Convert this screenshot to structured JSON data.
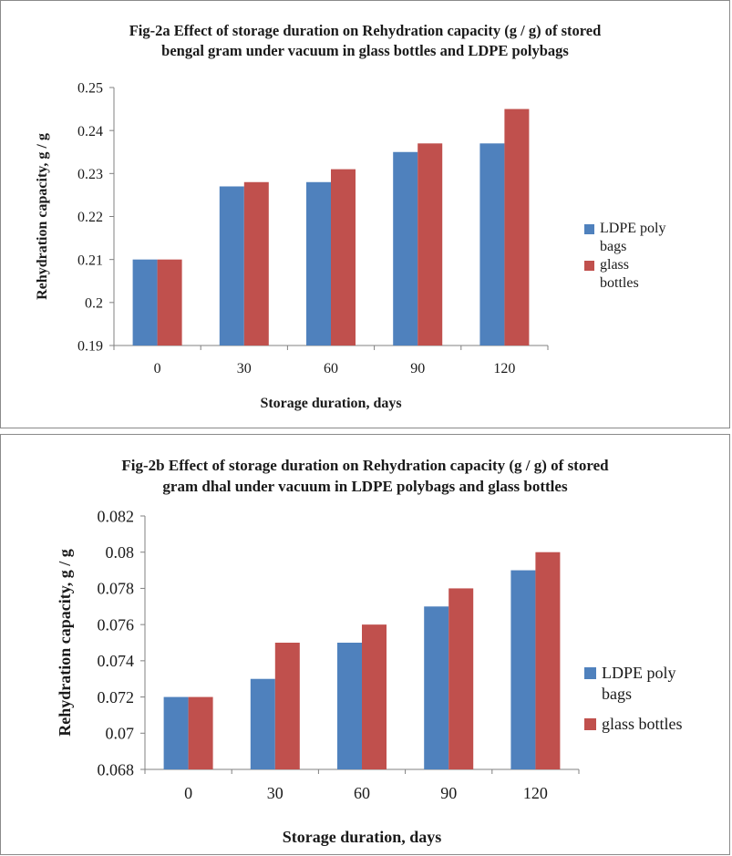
{
  "chart_data": [
    {
      "type": "bar",
      "title": [
        "Fig-2a Effect of storage duration on Rehydration capacity (g / g) of stored",
        "bengal gram under vacuum in glass bottles and LDPE polybags"
      ],
      "xlabel": "Storage duration, days",
      "ylabel": "Rehydration capacity, g / g",
      "categories": [
        "0",
        "30",
        "60",
        "90",
        "120"
      ],
      "ylim": [
        0.19,
        0.25
      ],
      "yticks": [
        "0.25",
        "0.24",
        "0.23",
        "0.22",
        "0.21",
        "0.2",
        "0.19"
      ],
      "grid": false,
      "legend_position": "right",
      "series": [
        {
          "name": [
            "LDPE poly",
            "bags"
          ],
          "color": "#4f81bd",
          "values": [
            0.21,
            0.227,
            0.228,
            0.235,
            0.237
          ]
        },
        {
          "name": [
            "glass",
            "bottles"
          ],
          "color": "#c0504d",
          "values": [
            0.21,
            0.228,
            0.231,
            0.237,
            0.245
          ]
        }
      ]
    },
    {
      "type": "bar",
      "title": [
        "Fig-2b Effect of storage duration on Rehydration capacity (g / g) of stored",
        "gram dhal under vacuum in LDPE polybags and glass bottles"
      ],
      "xlabel": "Storage duration, days",
      "ylabel": "Rehydration capacity, g / g",
      "categories": [
        "0",
        "30",
        "60",
        "90",
        "120"
      ],
      "ylim": [
        0.068,
        0.082
      ],
      "yticks": [
        "0.082",
        "0.08",
        "0.078",
        "0.076",
        "0.074",
        "0.072",
        "0.07",
        "0.068"
      ],
      "grid": false,
      "legend_position": "right",
      "series": [
        {
          "name": [
            "LDPE poly",
            "bags"
          ],
          "color": "#4f81bd",
          "values": [
            0.072,
            0.073,
            0.075,
            0.077,
            0.079
          ]
        },
        {
          "name": [
            "glass bottles"
          ],
          "color": "#c0504d",
          "values": [
            0.072,
            0.075,
            0.076,
            0.078,
            0.08
          ]
        }
      ]
    }
  ]
}
